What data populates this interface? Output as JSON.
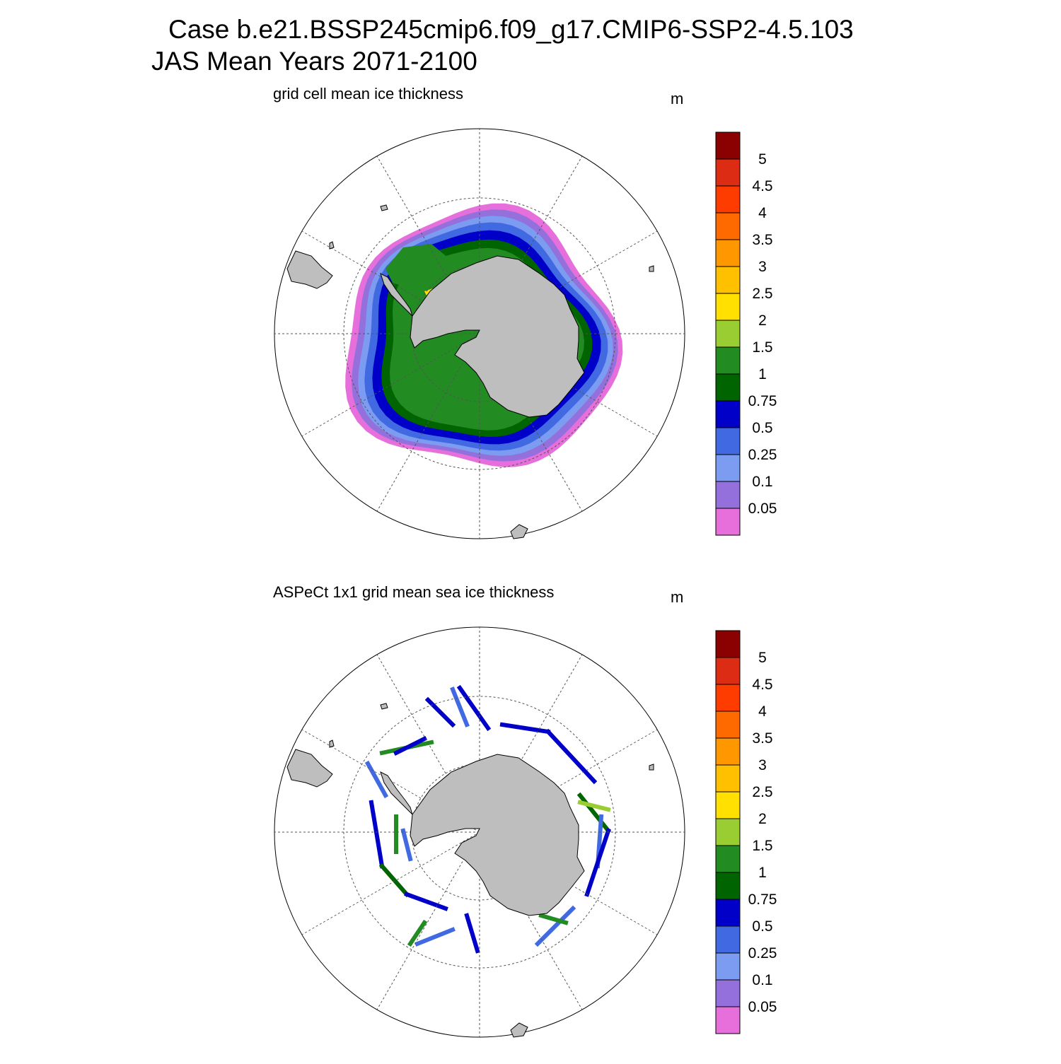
{
  "header": {
    "line1": "Case b.e21.BSSP245cmip6.f09_g17.CMIP6-SSP2-4.5.103",
    "line2": "JAS Mean   Years 2071-2100"
  },
  "colorscale": {
    "levels": [
      "0.05",
      "0.1",
      "0.25",
      "0.5",
      "0.75",
      "1",
      "1.5",
      "2",
      "2.5",
      "3",
      "3.5",
      "4",
      "4.5",
      "5"
    ],
    "colors": [
      "#e66fdc",
      "#9370db",
      "#7b9cf0",
      "#4169e1",
      "#0000c8",
      "#006400",
      "#228b22",
      "#9acd32",
      "#ffe000",
      "#ffc000",
      "#ff9800",
      "#ff6a00",
      "#ff3c00",
      "#dc2c14",
      "#8b0000"
    ],
    "land_color": "#bebebe"
  },
  "panels": [
    {
      "id": "model",
      "subtitle": "grid cell mean ice thickness",
      "units": "m",
      "kind": "filled-map"
    },
    {
      "id": "aspect",
      "subtitle": "ASPeCt 1x1 grid mean sea ice thickness",
      "units": "m",
      "kind": "ship-tracks"
    }
  ]
}
